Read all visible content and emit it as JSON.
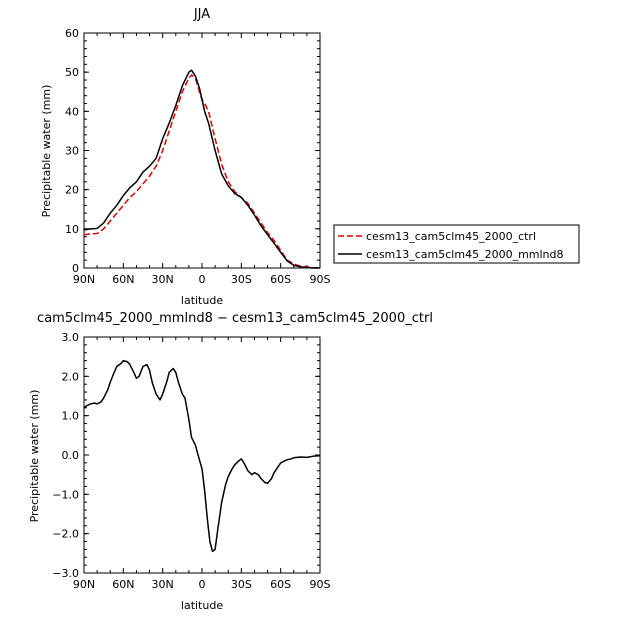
{
  "chart_data": [
    {
      "type": "line",
      "title": "JJA",
      "xlabel": "latitude",
      "ylabel": "Precipitable water (mm)",
      "xlim": [
        90,
        -90
      ],
      "ylim": [
        0,
        60
      ],
      "x_ticks": [
        90,
        60,
        30,
        0,
        -30,
        -60,
        -90
      ],
      "x_tick_labels": [
        "90N",
        "60N",
        "30N",
        "0",
        "30S",
        "60S",
        "90S"
      ],
      "y_ticks": [
        0,
        10,
        20,
        30,
        40,
        50,
        60
      ],
      "y_tick_labels": [
        "0",
        "10",
        "20",
        "30",
        "40",
        "50",
        "60"
      ],
      "legend": "outside-right",
      "grid": false,
      "series": [
        {
          "name": "cesm13_cam5clm45_2000_ctrl",
          "color": "#dd0000",
          "dash": "dashed",
          "x": [
            90,
            85,
            80,
            75,
            70,
            65,
            60,
            55,
            50,
            45,
            40,
            35,
            30,
            25,
            20,
            15,
            10,
            8,
            5,
            2,
            0,
            -2,
            -5,
            -10,
            -15,
            -20,
            -25,
            -30,
            -35,
            -40,
            -45,
            -50,
            -55,
            -60,
            -65,
            -70,
            -75,
            -80,
            -85,
            -90
          ],
          "y": [
            8.5,
            8.7,
            8.8,
            10,
            12,
            14,
            16,
            18,
            19.5,
            21.5,
            23.5,
            26,
            30,
            35,
            40,
            45,
            48.5,
            49.3,
            48.5,
            45,
            43,
            42,
            40,
            33,
            26.5,
            22,
            19.5,
            18,
            16.5,
            14,
            11.5,
            9,
            7,
            4.5,
            2,
            1,
            0.5,
            0.3,
            0.1,
            0
          ]
        },
        {
          "name": "cesm13_cam5clm45_2000_mmlnd8",
          "color": "#000000",
          "dash": "solid",
          "x": [
            90,
            85,
            80,
            75,
            70,
            65,
            60,
            55,
            50,
            45,
            40,
            35,
            30,
            25,
            20,
            15,
            10,
            8,
            5,
            2,
            0,
            -2,
            -5,
            -10,
            -15,
            -20,
            -25,
            -30,
            -35,
            -40,
            -45,
            -50,
            -55,
            -60,
            -65,
            -70,
            -75,
            -80,
            -85,
            -90
          ],
          "y": [
            9.7,
            10,
            10.1,
            11.5,
            14,
            16,
            18.5,
            20.5,
            22,
            24.5,
            26,
            28,
            33,
            37,
            41.5,
            46.5,
            50,
            50.5,
            49,
            46,
            43,
            40,
            37,
            30,
            24,
            21,
            19,
            18,
            16,
            13.5,
            10.8,
            8.5,
            6.3,
            4,
            1.8,
            0.7,
            0.3,
            0.1,
            0,
            0
          ]
        }
      ]
    },
    {
      "type": "line",
      "title": "cam5clm45_2000_mmlnd8 − cesm13_cam5clm45_2000_ctrl",
      "xlabel": "latitude",
      "ylabel": "Precipitable water (mm)",
      "xlim": [
        90,
        -90
      ],
      "ylim": [
        -3,
        3
      ],
      "x_ticks": [
        90,
        60,
        30,
        0,
        -30,
        -60,
        -90
      ],
      "x_tick_labels": [
        "90N",
        "60N",
        "30N",
        "0",
        "30S",
        "60S",
        "90S"
      ],
      "y_ticks": [
        3,
        2,
        1,
        0,
        -1,
        -2,
        -3
      ],
      "y_tick_labels": [
        "3.0",
        "2.0",
        "1.0",
        "0.0",
        "−1.0",
        "−2.0",
        "−3.0"
      ],
      "grid": false,
      "series": [
        {
          "color": "#000000",
          "dash": "solid",
          "x": [
            90,
            88,
            85,
            82,
            80,
            77,
            75,
            72,
            70,
            67,
            65,
            62,
            60,
            57,
            55,
            52,
            50,
            48,
            45,
            42,
            40,
            38,
            35,
            32,
            30,
            27,
            25,
            22,
            20,
            18,
            15,
            13,
            10,
            8,
            5,
            3,
            0,
            -2,
            -4,
            -6,
            -8,
            -10,
            -12,
            -15,
            -18,
            -20,
            -23,
            -25,
            -28,
            -30,
            -32,
            -35,
            -38,
            -40,
            -43,
            -45,
            -48,
            -50,
            -53,
            -55,
            -58,
            -60,
            -63,
            -65,
            -68,
            -70,
            -75,
            -80,
            -85,
            -90
          ],
          "y": [
            1.2,
            1.25,
            1.3,
            1.32,
            1.3,
            1.35,
            1.45,
            1.65,
            1.85,
            2.1,
            2.25,
            2.32,
            2.4,
            2.37,
            2.3,
            2.1,
            1.95,
            2.0,
            2.25,
            2.3,
            2.15,
            1.85,
            1.55,
            1.4,
            1.55,
            1.85,
            2.1,
            2.2,
            2.1,
            1.85,
            1.55,
            1.45,
            0.9,
            0.45,
            0.25,
            0.0,
            -0.35,
            -0.9,
            -1.6,
            -2.2,
            -2.45,
            -2.4,
            -1.9,
            -1.2,
            -0.75,
            -0.55,
            -0.35,
            -0.25,
            -0.15,
            -0.1,
            -0.2,
            -0.4,
            -0.5,
            -0.45,
            -0.5,
            -0.6,
            -0.7,
            -0.72,
            -0.6,
            -0.45,
            -0.3,
            -0.2,
            -0.15,
            -0.12,
            -0.1,
            -0.07,
            -0.05,
            -0.06,
            -0.03,
            -0.02
          ]
        }
      ]
    }
  ]
}
